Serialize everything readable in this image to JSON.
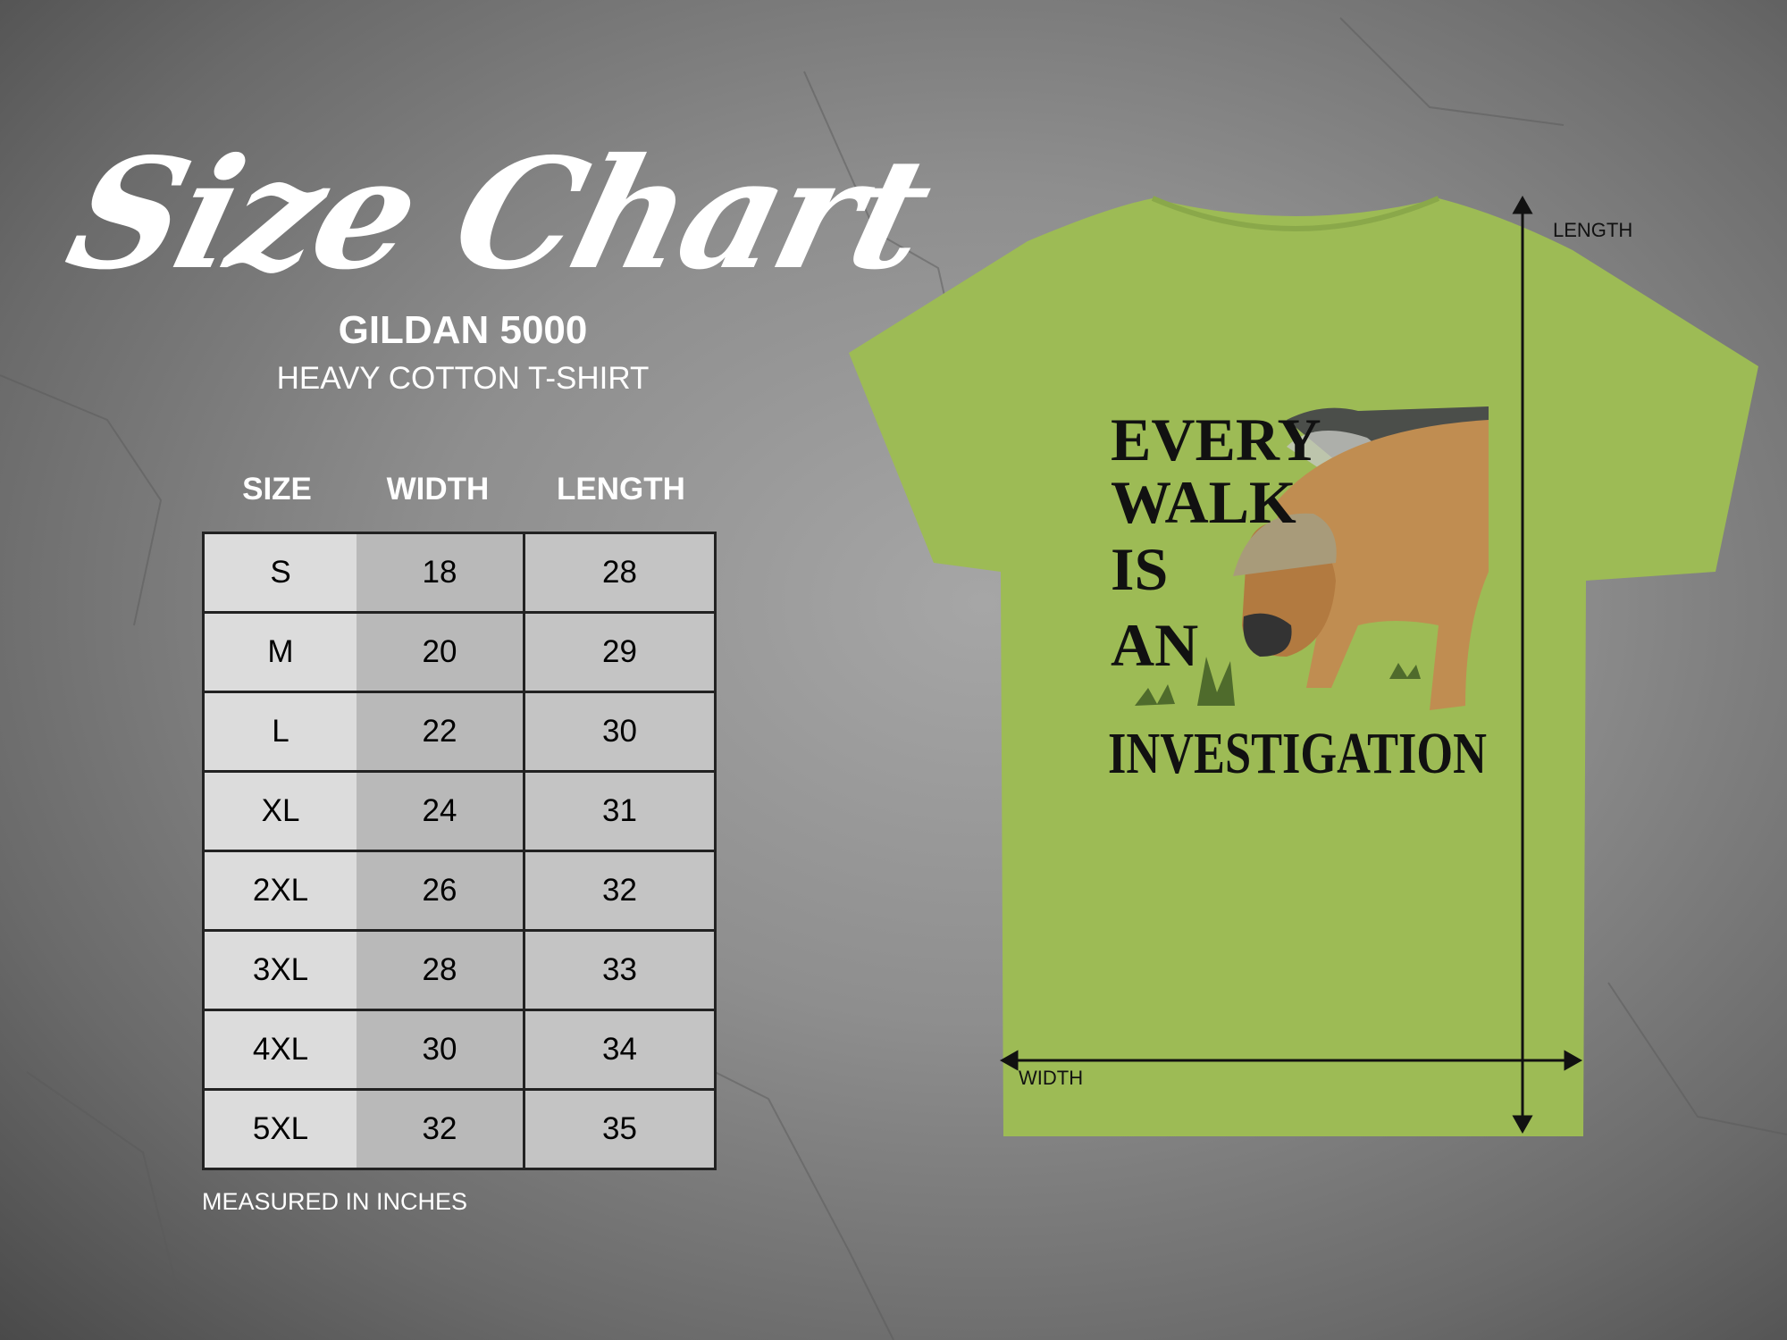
{
  "title": "Size Chart",
  "product": {
    "brand": "GILDAN 5000",
    "name": "HEAVY COTTON T-SHIRT"
  },
  "table": {
    "headers": [
      "SIZE",
      "WIDTH",
      "LENGTH"
    ],
    "rows": [
      [
        "S",
        "18",
        "28"
      ],
      [
        "M",
        "20",
        "29"
      ],
      [
        "L",
        "22",
        "30"
      ],
      [
        "XL",
        "24",
        "31"
      ],
      [
        "2XL",
        "26",
        "32"
      ],
      [
        "3XL",
        "28",
        "33"
      ],
      [
        "4XL",
        "30",
        "34"
      ],
      [
        "5XL",
        "32",
        "35"
      ]
    ]
  },
  "note": "MEASURED IN INCHES",
  "shirt": {
    "color": "#9dbb55",
    "design_lines": [
      "EVERY",
      "WALK",
      "IS",
      "AN",
      "INVESTIGATION"
    ],
    "length_label": "LENGTH",
    "width_label": "WIDTH"
  }
}
